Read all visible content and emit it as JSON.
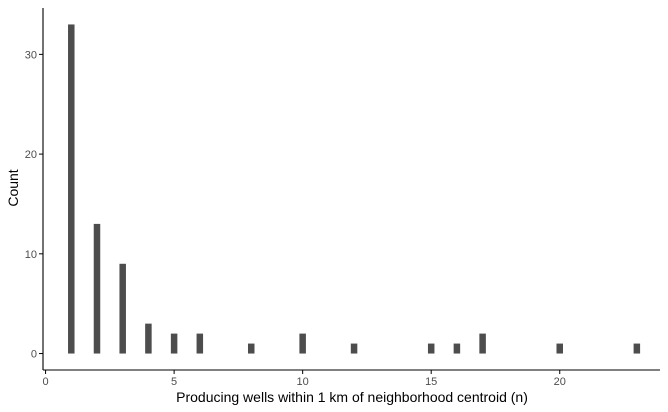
{
  "chart_data": {
    "type": "bar",
    "title": "",
    "xlabel": "Producing wells within 1 km of neighborhood centroid (n)",
    "ylabel": "Count",
    "x": [
      1,
      2,
      3,
      4,
      5,
      6,
      8,
      10,
      12,
      15,
      16,
      17,
      20,
      23
    ],
    "values": [
      33,
      13,
      9,
      3,
      2,
      2,
      1,
      2,
      1,
      1,
      1,
      2,
      1,
      1
    ],
    "xlim": [
      -0.1,
      23.9
    ],
    "ylim": [
      -1.65,
      34.65
    ],
    "x_ticks": [
      0,
      5,
      10,
      15,
      20
    ],
    "x_tick_labels": [
      "0",
      "5",
      "10",
      "15",
      "20"
    ],
    "y_ticks": [
      0,
      10,
      20,
      30
    ],
    "y_tick_labels": [
      "0",
      "10",
      "20",
      "30"
    ],
    "grid": false,
    "bar_color": "#4d4d4d",
    "axis_color": "#000000"
  }
}
